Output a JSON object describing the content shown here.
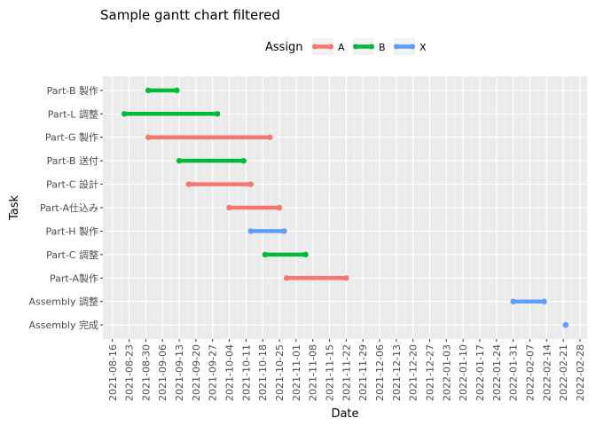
{
  "chart_data": {
    "type": "gantt",
    "title": "Sample gantt chart filtered",
    "xlabel": "Date",
    "ylabel": "Task",
    "legend": {
      "title": "Assign",
      "position": "top",
      "entries": [
        {
          "name": "A",
          "color": "#F8766D"
        },
        {
          "name": "B",
          "color": "#00BA38"
        },
        {
          "name": "X",
          "color": "#619CFF"
        }
      ]
    },
    "x_tick_labels": [
      "2021-08-16",
      "2021-08-23",
      "2021-08-30",
      "2021-09-06",
      "2021-09-13",
      "2021-09-20",
      "2021-09-27",
      "2021-10-04",
      "2021-10-11",
      "2021-10-18",
      "2021-10-25",
      "2021-11-01",
      "2021-11-08",
      "2021-11-15",
      "2021-11-22",
      "2021-11-29",
      "2021-12-06",
      "2021-12-13",
      "2021-12-20",
      "2021-12-27",
      "2022-01-03",
      "2022-01-10",
      "2022-01-17",
      "2022-01-24",
      "2022-01-31",
      "2022-02-07",
      "2022-02-14",
      "2022-02-21",
      "2022-02-28"
    ],
    "xlim": [
      "2021-08-12",
      "2022-03-03"
    ],
    "grid": true,
    "background": "#EBEBEB",
    "tasks": [
      {
        "task": "Part-B 製作",
        "assign": "B",
        "start": "2021-08-31",
        "end": "2021-09-12"
      },
      {
        "task": "Part-L 調整",
        "assign": "B",
        "start": "2021-08-21",
        "end": "2021-09-29"
      },
      {
        "task": "Part-G 製作",
        "assign": "A",
        "start": "2021-08-31",
        "end": "2021-10-21"
      },
      {
        "task": "Part-B 送付",
        "assign": "B",
        "start": "2021-09-13",
        "end": "2021-10-10"
      },
      {
        "task": "Part-C 設計",
        "assign": "A",
        "start": "2021-09-17",
        "end": "2021-10-13"
      },
      {
        "task": "Part-A仕込み",
        "assign": "A",
        "start": "2021-10-04",
        "end": "2021-10-25"
      },
      {
        "task": "Part-H 製作",
        "assign": "X",
        "start": "2021-10-13",
        "end": "2021-10-27"
      },
      {
        "task": "Part-C 調整",
        "assign": "B",
        "start": "2021-10-19",
        "end": "2021-11-05"
      },
      {
        "task": "Part-A製作",
        "assign": "A",
        "start": "2021-10-28",
        "end": "2021-11-22"
      },
      {
        "task": "Assembly 調整",
        "assign": "X",
        "start": "2022-01-31",
        "end": "2022-02-13"
      },
      {
        "task": "Assembly 完成",
        "assign": "X",
        "start": "2022-02-22",
        "end": "2022-02-22"
      }
    ]
  }
}
